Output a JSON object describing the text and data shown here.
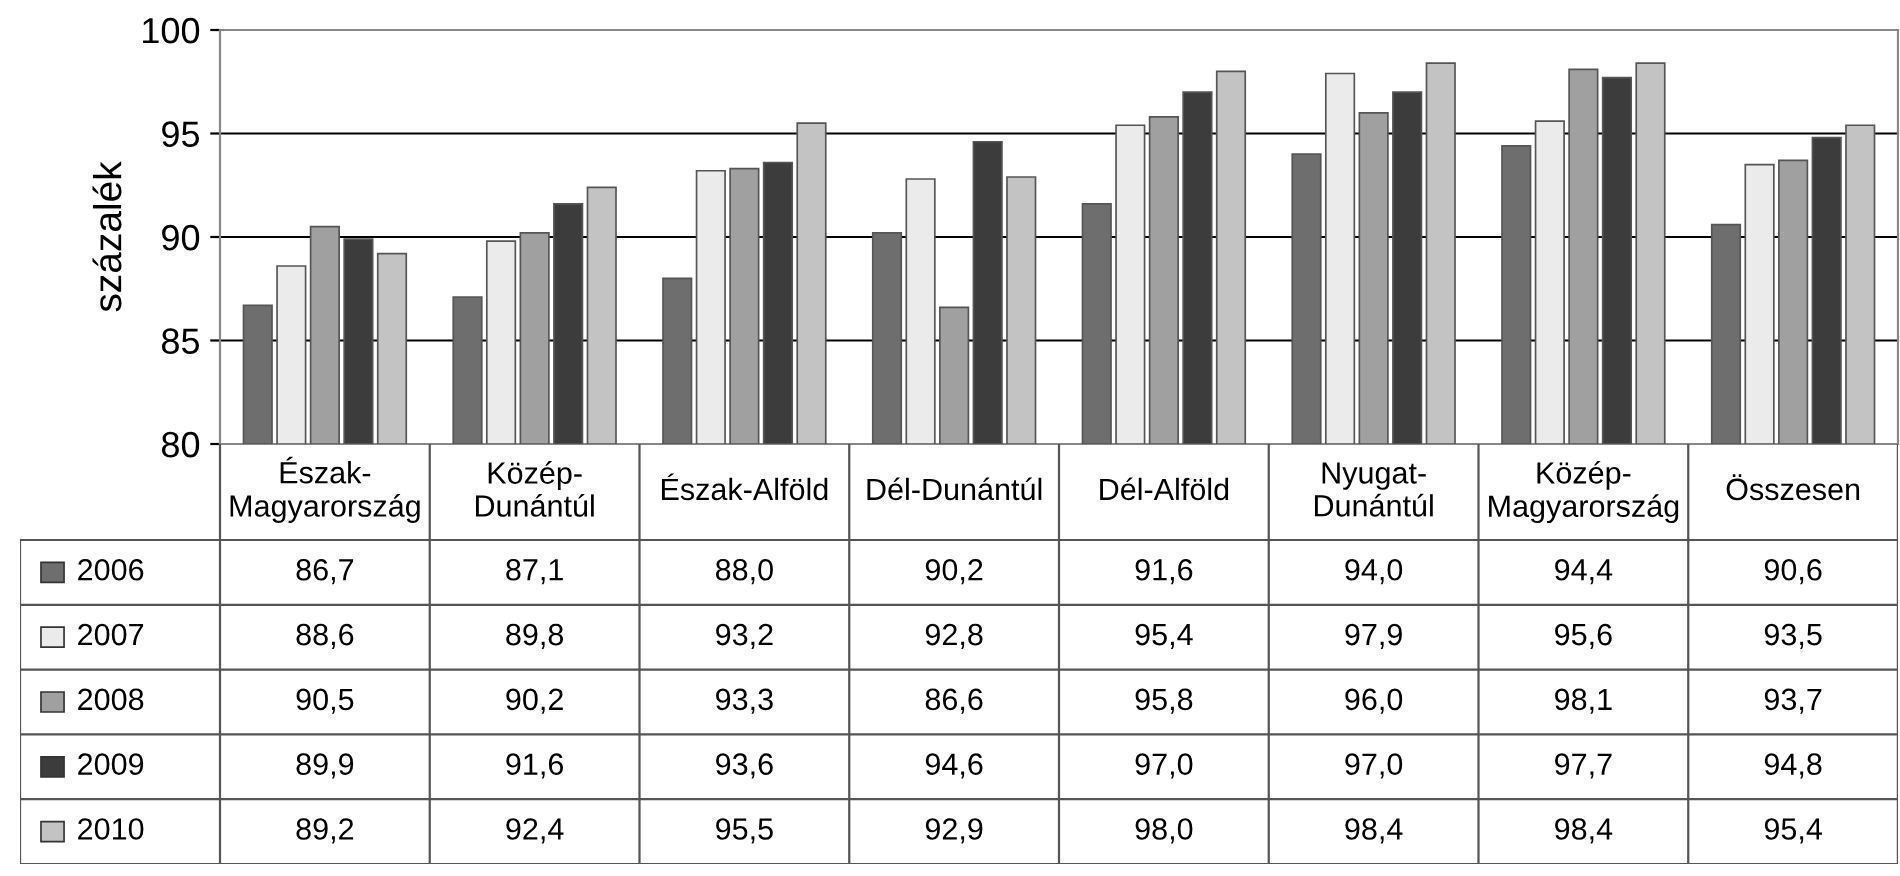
{
  "chart_data": {
    "type": "bar",
    "ylabel": "százalék",
    "categories": [
      "Észak-Magyarország",
      "Közép-Dunántúl",
      "Észak-Alföld",
      "Dél-Dunántúl",
      "Dél-Alföld",
      "Nyugat-Dunántúl",
      "Közép-Magyarország",
      "Összesen"
    ],
    "series": [
      {
        "name": "2006",
        "color": "#6e6e6e",
        "values": [
          86.7,
          87.1,
          88.0,
          90.2,
          91.6,
          94.0,
          94.4,
          90.6
        ],
        "value_labels": [
          "86,7",
          "87,1",
          "88,0",
          "90,2",
          "91,6",
          "94,0",
          "94,4",
          "90,6"
        ]
      },
      {
        "name": "2007",
        "color": "#ebebeb",
        "values": [
          88.6,
          89.8,
          93.2,
          92.8,
          95.4,
          97.9,
          95.6,
          93.5
        ],
        "value_labels": [
          "88,6",
          "89,8",
          "93,2",
          "92,8",
          "95,4",
          "97,9",
          "95,6",
          "93,5"
        ]
      },
      {
        "name": "2008",
        "color": "#a0a0a0",
        "values": [
          90.5,
          90.2,
          93.3,
          86.6,
          95.8,
          96.0,
          98.1,
          93.7
        ],
        "value_labels": [
          "90,5",
          "90,2",
          "93,3",
          "86,6",
          "95,8",
          "96,0",
          "98,1",
          "93,7"
        ]
      },
      {
        "name": "2009",
        "color": "#3c3c3c",
        "values": [
          89.9,
          91.6,
          93.6,
          94.6,
          97.0,
          97.0,
          97.7,
          94.8
        ],
        "value_labels": [
          "89,9",
          "91,6",
          "93,6",
          "94,6",
          "97,0",
          "97,0",
          "97,7",
          "94,8"
        ]
      },
      {
        "name": "2010",
        "color": "#c3c3c3",
        "values": [
          89.2,
          92.4,
          95.5,
          92.9,
          98.0,
          98.4,
          98.4,
          95.4
        ],
        "value_labels": [
          "89,2",
          "92,4",
          "95,5",
          "92,9",
          "98,0",
          "98,4",
          "98,4",
          "95,4"
        ]
      }
    ],
    "ylim": [
      80,
      100
    ],
    "yticks": [
      80,
      85,
      90,
      95,
      100
    ],
    "grid": "y",
    "legend": "bottom left"
  }
}
